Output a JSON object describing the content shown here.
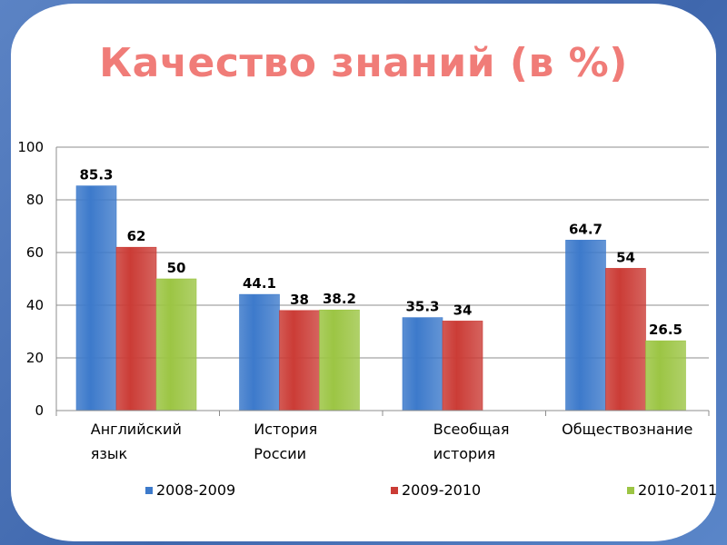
{
  "title": "Качество знаний (в %)",
  "colors": {
    "title": "#f07c78",
    "series": [
      "#3d7acb",
      "#cb3c36",
      "#9cc544"
    ]
  },
  "chart_data": {
    "type": "bar",
    "title": "Качество знаний (в %)",
    "ylim": [
      0,
      100
    ],
    "yticks": [
      0,
      20,
      40,
      60,
      80,
      100
    ],
    "grid": true,
    "legend": "bottom",
    "categories": [
      [
        "Английский",
        "язык"
      ],
      [
        "История",
        "России"
      ],
      [
        "Всеобщая",
        "история"
      ],
      [
        "Обществознание"
      ]
    ],
    "series": [
      {
        "name": "2008-2009",
        "values": [
          85.3,
          44.1,
          35.3,
          64.7
        ],
        "labels": [
          "85.3",
          "44.1",
          "35.3",
          "64.7"
        ]
      },
      {
        "name": "2009-2010",
        "values": [
          62,
          38,
          34,
          54
        ],
        "labels": [
          "62",
          "38",
          "34",
          "54"
        ]
      },
      {
        "name": "2010-2011",
        "values": [
          50,
          38.2,
          null,
          26.5
        ],
        "labels": [
          "50",
          "38.2",
          "",
          "26.5"
        ]
      }
    ]
  }
}
